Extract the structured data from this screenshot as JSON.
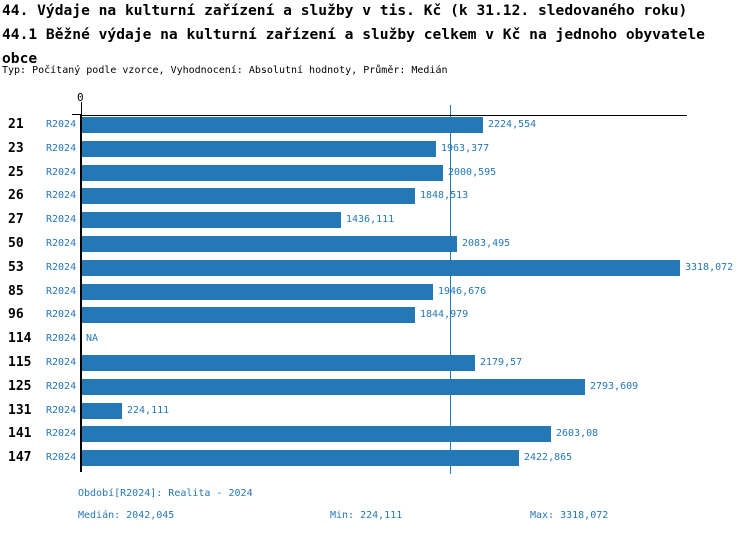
{
  "title": {
    "line1": "44. Výdaje na kulturní zařízení a služby v tis. Kč (k 31.12. sledovaného roku)",
    "line2": "44.1 Běžné výdaje na kulturní zařízení a služby celkem v Kč na jednoho obyvatele",
    "line3": "obce",
    "subtitle": "Typ: Počítaný podle vzorce, Vyhodnocení: Absolutní hodnoty, Průměr: Medián"
  },
  "chart_data": {
    "type": "bar",
    "orientation": "horizontal",
    "origin_label": "0",
    "series_label": "R2024",
    "categories": [
      "21",
      "23",
      "25",
      "26",
      "27",
      "50",
      "53",
      "85",
      "96",
      "114",
      "115",
      "125",
      "131",
      "141",
      "147"
    ],
    "values": [
      2224.554,
      1963.377,
      2000.595,
      1848.513,
      1436.111,
      2083.495,
      3318.072,
      1946.676,
      1844.979,
      null,
      2179.57,
      2793.609,
      224.111,
      2603.08,
      2422.865
    ],
    "value_labels": [
      "2224,554",
      "1963,377",
      "2000,595",
      "1848,513",
      "1436,111",
      "2083,495",
      "3318,072",
      "1946,676",
      "1844,979",
      "NA",
      "2179,57",
      "2793,609",
      "224,111",
      "2603,08",
      "2422,865"
    ],
    "median": 2042.045,
    "xlim": [
      0,
      3318.072
    ],
    "bar_color": "#2478b5",
    "median_line_color": "#2478b5",
    "grid": false,
    "legend": "none"
  },
  "footer": {
    "period": "Období[R2024]: Realita - 2024",
    "median": "Medián: 2042,045",
    "min": "Min: 224,111",
    "max": "Max: 3318,072"
  }
}
